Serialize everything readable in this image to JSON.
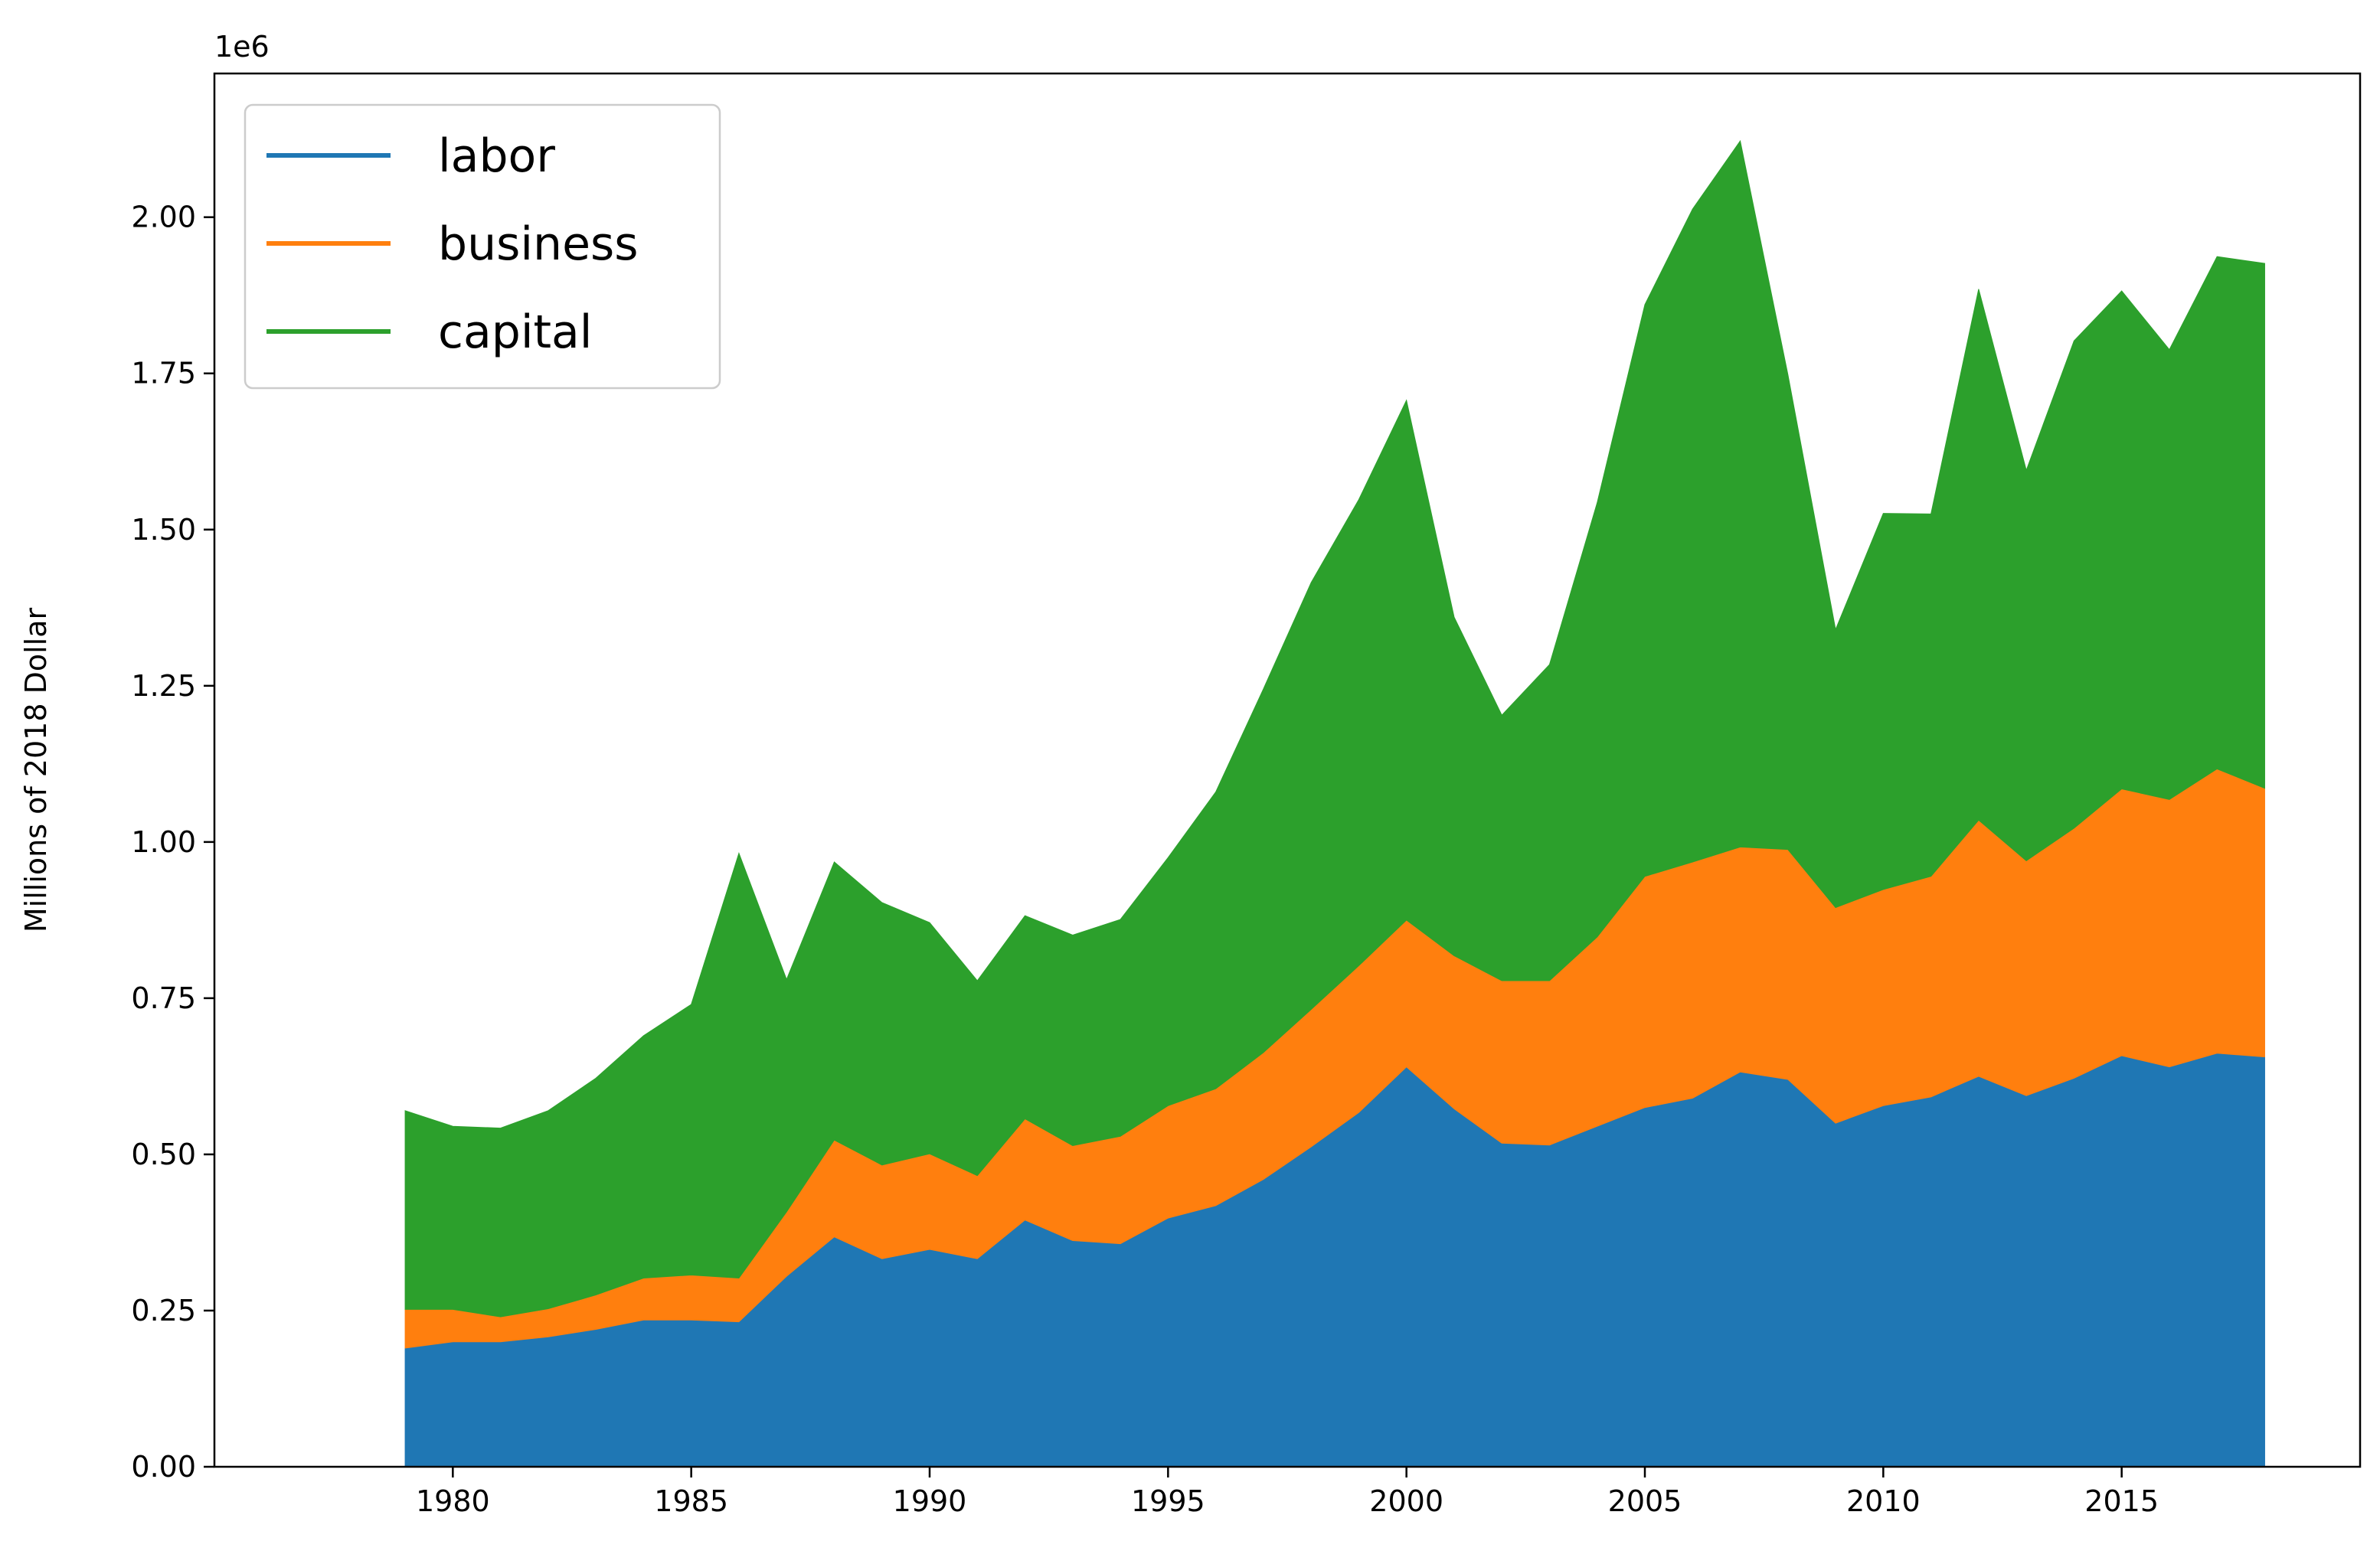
{
  "chart_data": {
    "type": "area",
    "stacked": true,
    "title": "",
    "xlabel": "",
    "ylabel": "Millions of 2018 Dollar",
    "y_offset_text": "1e6",
    "xlim": [
      1975,
      2020
    ],
    "ylim": [
      0,
      2230000
    ],
    "x": [
      1979,
      1980,
      1981,
      1982,
      1983,
      1984,
      1985,
      1986,
      1987,
      1988,
      1989,
      1990,
      1991,
      1992,
      1993,
      1994,
      1995,
      1996,
      1997,
      1998,
      1999,
      2000,
      2001,
      2002,
      2003,
      2004,
      2005,
      2006,
      2007,
      2008,
      2009,
      2010,
      2011,
      2012,
      2013,
      2014,
      2015,
      2016,
      2017,
      2018
    ],
    "xticks": [
      1980,
      1985,
      1990,
      1995,
      2000,
      2005,
      2010,
      2015
    ],
    "yticks": [
      0,
      250000,
      500000,
      750000,
      1000000,
      1250000,
      1500000,
      1750000,
      2000000
    ],
    "ytick_labels": [
      "0.00",
      "0.25",
      "0.50",
      "0.75",
      "1.00",
      "1.25",
      "1.50",
      "1.75",
      "2.00"
    ],
    "legend_position": "upper-left",
    "grid": false,
    "series": [
      {
        "name": "labor",
        "color": "#1f77b4",
        "values": [
          190000,
          200000,
          200000,
          208000,
          220000,
          235000,
          235000,
          232000,
          305000,
          368000,
          333000,
          348000,
          333000,
          395000,
          362000,
          357000,
          398000,
          418000,
          460000,
          512000,
          567000,
          640000,
          573000,
          518000,
          515000,
          545000,
          575000,
          590000,
          632000,
          620000,
          550000,
          578000,
          592000,
          625000,
          594000,
          622000,
          658000,
          640000,
          662000,
          656000
        ]
      },
      {
        "name": "business",
        "color": "#ff7f0e",
        "values": [
          62000,
          52000,
          40000,
          45000,
          55000,
          67000,
          72000,
          70000,
          103000,
          155000,
          150000,
          153000,
          133000,
          162000,
          152000,
          172000,
          180000,
          187000,
          203000,
          220000,
          235000,
          235000,
          245000,
          260000,
          263000,
          303000,
          370000,
          378000,
          360000,
          368000,
          345000,
          346000,
          353000,
          410000,
          376000,
          400000,
          427000,
          428000,
          455000,
          430000
        ]
      },
      {
        "name": "capital",
        "color": "#2ca02c",
        "values": [
          318000,
          293000,
          302000,
          317000,
          347000,
          388000,
          433000,
          680000,
          372000,
          445000,
          420000,
          370000,
          312000,
          325000,
          337000,
          347000,
          397000,
          475000,
          582000,
          683000,
          746000,
          832000,
          542000,
          425000,
          506000,
          695000,
          915000,
          1045000,
          1130000,
          760000,
          445000,
          602000,
          580000,
          850000,
          625000,
          780000,
          797000,
          720000,
          820000,
          840000
        ]
      }
    ]
  }
}
